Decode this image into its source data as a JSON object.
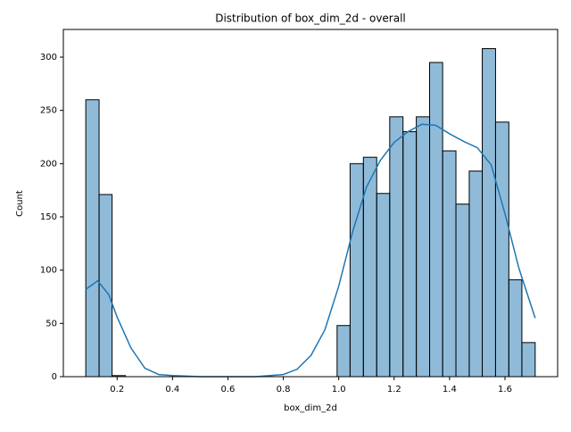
{
  "chart_data": {
    "type": "histogram",
    "title": "Distribution of box_dim_2d - overall",
    "x_label": "box_dim_2d",
    "y_label": "Count",
    "bins": [
      0.087,
      0.135,
      0.182,
      0.23,
      0.278,
      0.326,
      0.373,
      0.421,
      0.469,
      0.516,
      0.564,
      0.612,
      0.66,
      0.707,
      0.755,
      0.803,
      0.85,
      0.898,
      0.946,
      0.994,
      1.041,
      1.089,
      1.137,
      1.184,
      1.232,
      1.28,
      1.328,
      1.375,
      1.423,
      1.471,
      1.518,
      1.566,
      1.614,
      1.661,
      1.709
    ],
    "values": [
      260,
      171,
      1,
      0,
      0,
      0,
      0,
      0,
      0,
      0,
      0,
      0,
      0,
      0,
      0,
      0,
      0,
      0,
      0,
      48,
      200,
      206,
      172,
      244,
      230,
      244,
      295,
      212,
      162,
      193,
      308,
      239,
      91,
      32
    ],
    "color": "rgba(31,119,180,0.5)",
    "edge_color": "#000000",
    "kde": {
      "color": "#1f77b4",
      "x": [
        0.087,
        0.13,
        0.17,
        0.2,
        0.25,
        0.3,
        0.35,
        0.4,
        0.5,
        0.6,
        0.7,
        0.8,
        0.85,
        0.9,
        0.95,
        1.0,
        1.05,
        1.1,
        1.15,
        1.2,
        1.25,
        1.3,
        1.35,
        1.4,
        1.45,
        1.5,
        1.55,
        1.6,
        1.65,
        1.709
      ],
      "values": [
        82,
        90,
        77,
        56,
        27,
        8,
        2,
        1,
        0,
        0,
        0,
        2,
        7,
        20,
        44,
        85,
        136,
        178,
        203,
        220,
        230,
        237,
        236,
        228,
        221,
        215,
        199,
        153,
        102,
        55
      ]
    },
    "xlim": [
      0.006,
      1.79
    ],
    "ylim": [
      0,
      326
    ],
    "xticks": [
      0.2,
      0.4,
      0.6,
      0.8,
      1.0,
      1.2,
      1.4,
      1.6
    ],
    "yticks": [
      0,
      50,
      100,
      150,
      200,
      250,
      300
    ]
  }
}
